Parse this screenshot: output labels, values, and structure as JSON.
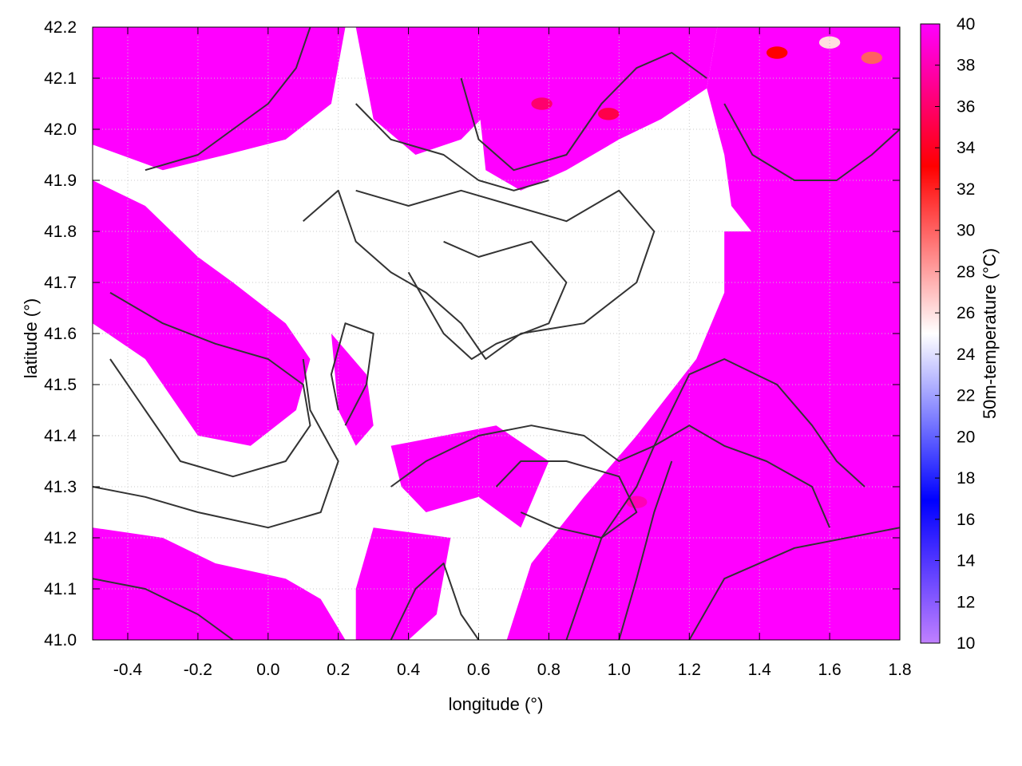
{
  "chart_data": {
    "type": "heatmap",
    "title": "",
    "xlabel": "longitude (°)",
    "ylabel": "latitude (°)",
    "colorbar_label": "50m-temperature (°C)",
    "xlim": [
      -0.5,
      1.8
    ],
    "ylim": [
      41.0,
      42.2
    ],
    "xticks": [
      -0.4,
      -0.2,
      0.0,
      0.2,
      0.4,
      0.6,
      0.8,
      1.0,
      1.2,
      1.4,
      1.6,
      1.8
    ],
    "xtick_labels": [
      "-0.4",
      "-0.2",
      "0.0",
      "0.2",
      "0.4",
      "0.6",
      "0.8",
      "1.0",
      "1.2",
      "1.4",
      "1.6",
      "1.8"
    ],
    "yticks": [
      41.0,
      41.1,
      41.2,
      41.3,
      41.4,
      41.5,
      41.6,
      41.7,
      41.8,
      41.9,
      42.0,
      42.1,
      42.2
    ],
    "ytick_labels": [
      "41.0",
      "41.1",
      "41.2",
      "41.3",
      "41.4",
      "41.5",
      "41.6",
      "41.7",
      "41.8",
      "41.9",
      "42.0",
      "42.1",
      "42.2"
    ],
    "colorbar": {
      "range": [
        10,
        40
      ],
      "ticks": [
        10,
        12,
        14,
        16,
        18,
        20,
        22,
        24,
        26,
        28,
        30,
        32,
        34,
        36,
        38,
        40
      ],
      "tick_labels": [
        "10",
        "12",
        "14",
        "16",
        "18",
        "20",
        "22",
        "24",
        "26",
        "28",
        "30",
        "32",
        "34",
        "36",
        "38",
        "40"
      ],
      "stops": [
        {
          "value": 10,
          "color": "#c080ff"
        },
        {
          "value": 17,
          "color": "#0000ff"
        },
        {
          "value": 25,
          "color": "#ffffff"
        },
        {
          "value": 33,
          "color": "#ff0000"
        },
        {
          "value": 40,
          "color": "#ff00ff"
        }
      ]
    },
    "grid": true,
    "field_description_values": {
      "dominant_value_C": 40,
      "contour_color": "#333333"
    },
    "saturated_regions_lonlat": [
      [
        [
          -0.5,
          42.2
        ],
        [
          0.22,
          42.2
        ],
        [
          0.18,
          42.05
        ],
        [
          0.05,
          41.98
        ],
        [
          -0.12,
          41.95
        ],
        [
          -0.3,
          41.92
        ],
        [
          -0.5,
          41.97
        ]
      ],
      [
        [
          -0.5,
          41.9
        ],
        [
          -0.35,
          41.85
        ],
        [
          -0.2,
          41.75
        ],
        [
          -0.1,
          41.7
        ],
        [
          0.05,
          41.62
        ],
        [
          0.12,
          41.55
        ],
        [
          0.08,
          41.45
        ],
        [
          -0.05,
          41.38
        ],
        [
          -0.2,
          41.4
        ],
        [
          -0.35,
          41.55
        ],
        [
          -0.5,
          41.62
        ]
      ],
      [
        [
          -0.5,
          41.22
        ],
        [
          -0.3,
          41.2
        ],
        [
          -0.15,
          41.15
        ],
        [
          0.05,
          41.12
        ],
        [
          0.15,
          41.08
        ],
        [
          0.22,
          41.0
        ],
        [
          -0.5,
          41.0
        ]
      ],
      [
        [
          0.25,
          42.2
        ],
        [
          0.62,
          42.2
        ],
        [
          0.65,
          42.05
        ],
        [
          0.55,
          41.98
        ],
        [
          0.42,
          41.95
        ],
        [
          0.3,
          42.02
        ]
      ],
      [
        [
          0.62,
          42.2
        ],
        [
          1.28,
          42.2
        ],
        [
          1.25,
          42.08
        ],
        [
          1.12,
          42.02
        ],
        [
          1.0,
          41.98
        ],
        [
          0.85,
          41.92
        ],
        [
          0.72,
          41.88
        ],
        [
          0.62,
          41.92
        ],
        [
          0.6,
          42.05
        ]
      ],
      [
        [
          1.28,
          42.2
        ],
        [
          1.8,
          42.2
        ],
        [
          1.8,
          41.7
        ],
        [
          1.55,
          41.72
        ],
        [
          1.4,
          41.78
        ],
        [
          1.32,
          41.85
        ],
        [
          1.3,
          41.95
        ],
        [
          1.25,
          42.08
        ]
      ],
      [
        [
          1.3,
          41.8
        ],
        [
          1.8,
          41.8
        ],
        [
          1.8,
          41.0
        ],
        [
          0.68,
          41.0
        ],
        [
          0.75,
          41.15
        ],
        [
          0.9,
          41.28
        ],
        [
          1.05,
          41.4
        ],
        [
          1.22,
          41.55
        ],
        [
          1.3,
          41.68
        ]
      ],
      [
        [
          0.35,
          41.38
        ],
        [
          0.65,
          41.42
        ],
        [
          0.8,
          41.35
        ],
        [
          0.72,
          41.22
        ],
        [
          0.6,
          41.28
        ],
        [
          0.45,
          41.25
        ],
        [
          0.38,
          41.3
        ]
      ],
      [
        [
          0.3,
          41.22
        ],
        [
          0.52,
          41.2
        ],
        [
          0.48,
          41.05
        ],
        [
          0.4,
          41.0
        ],
        [
          0.25,
          41.0
        ],
        [
          0.25,
          41.1
        ]
      ],
      [
        [
          0.18,
          41.6
        ],
        [
          0.28,
          41.52
        ],
        [
          0.3,
          41.42
        ],
        [
          0.25,
          41.38
        ],
        [
          0.2,
          41.45
        ]
      ]
    ],
    "contours_lonlat": [
      [
        [
          0.1,
          41.82
        ],
        [
          0.2,
          41.88
        ],
        [
          0.25,
          41.78
        ],
        [
          0.35,
          41.72
        ],
        [
          0.45,
          41.68
        ],
        [
          0.55,
          41.62
        ],
        [
          0.62,
          41.55
        ],
        [
          0.72,
          41.6
        ],
        [
          0.9,
          41.62
        ],
        [
          1.05,
          41.7
        ],
        [
          1.1,
          41.8
        ],
        [
          1.0,
          41.88
        ],
        [
          0.85,
          41.82
        ],
        [
          0.7,
          41.85
        ],
        [
          0.55,
          41.88
        ],
        [
          0.4,
          41.85
        ],
        [
          0.25,
          41.88
        ]
      ],
      [
        [
          0.4,
          41.72
        ],
        [
          0.5,
          41.6
        ],
        [
          0.58,
          41.55
        ],
        [
          0.65,
          41.58
        ],
        [
          0.8,
          41.62
        ],
        [
          0.85,
          41.7
        ],
        [
          0.75,
          41.78
        ],
        [
          0.6,
          41.75
        ],
        [
          0.5,
          41.78
        ]
      ],
      [
        [
          -0.45,
          41.68
        ],
        [
          -0.3,
          41.62
        ],
        [
          -0.15,
          41.58
        ],
        [
          0.0,
          41.55
        ],
        [
          0.1,
          41.5
        ],
        [
          0.12,
          41.42
        ],
        [
          0.05,
          41.35
        ],
        [
          -0.1,
          41.32
        ],
        [
          -0.25,
          41.35
        ],
        [
          -0.35,
          41.45
        ],
        [
          -0.45,
          41.55
        ]
      ],
      [
        [
          -0.5,
          41.3
        ],
        [
          -0.35,
          41.28
        ],
        [
          -0.2,
          41.25
        ],
        [
          0.0,
          41.22
        ],
        [
          0.15,
          41.25
        ],
        [
          0.2,
          41.35
        ],
        [
          0.12,
          41.45
        ],
        [
          0.1,
          41.55
        ]
      ],
      [
        [
          0.35,
          41.3
        ],
        [
          0.45,
          41.35
        ],
        [
          0.6,
          41.4
        ],
        [
          0.75,
          41.42
        ],
        [
          0.9,
          41.4
        ],
        [
          1.0,
          41.35
        ],
        [
          1.1,
          41.38
        ],
        [
          1.15,
          41.45
        ],
        [
          1.2,
          41.52
        ],
        [
          1.3,
          41.55
        ],
        [
          1.45,
          41.5
        ],
        [
          1.55,
          41.42
        ],
        [
          1.62,
          41.35
        ],
        [
          1.7,
          41.3
        ]
      ],
      [
        [
          0.65,
          41.3
        ],
        [
          0.72,
          41.35
        ],
        [
          0.85,
          41.35
        ],
        [
          1.0,
          41.32
        ],
        [
          1.05,
          41.25
        ],
        [
          0.95,
          41.2
        ],
        [
          0.82,
          41.22
        ],
        [
          0.72,
          41.25
        ]
      ],
      [
        [
          0.85,
          41.0
        ],
        [
          0.9,
          41.1
        ],
        [
          0.95,
          41.2
        ],
        [
          1.05,
          41.3
        ],
        [
          1.1,
          41.38
        ],
        [
          1.2,
          41.42
        ],
        [
          1.3,
          41.38
        ],
        [
          1.42,
          41.35
        ],
        [
          1.55,
          41.3
        ],
        [
          1.6,
          41.22
        ]
      ],
      [
        [
          1.0,
          41.0
        ],
        [
          1.05,
          41.12
        ],
        [
          1.1,
          41.25
        ],
        [
          1.15,
          41.35
        ]
      ],
      [
        [
          1.2,
          41.0
        ],
        [
          1.3,
          41.12
        ],
        [
          1.5,
          41.18
        ],
        [
          1.65,
          41.2
        ],
        [
          1.8,
          41.22
        ]
      ],
      [
        [
          0.55,
          42.1
        ],
        [
          0.6,
          41.98
        ],
        [
          0.7,
          41.92
        ],
        [
          0.85,
          41.95
        ],
        [
          0.95,
          42.05
        ],
        [
          1.05,
          42.12
        ],
        [
          1.15,
          42.15
        ],
        [
          1.25,
          42.1
        ]
      ],
      [
        [
          0.25,
          42.05
        ],
        [
          0.35,
          41.98
        ],
        [
          0.5,
          41.95
        ],
        [
          0.6,
          41.9
        ],
        [
          0.7,
          41.88
        ],
        [
          0.8,
          41.9
        ]
      ],
      [
        [
          1.3,
          42.05
        ],
        [
          1.38,
          41.95
        ],
        [
          1.5,
          41.9
        ],
        [
          1.62,
          41.9
        ],
        [
          1.72,
          41.95
        ],
        [
          1.8,
          42.0
        ]
      ],
      [
        [
          -0.35,
          41.92
        ],
        [
          -0.2,
          41.95
        ],
        [
          -0.1,
          42.0
        ],
        [
          0.0,
          42.05
        ],
        [
          0.08,
          42.12
        ],
        [
          0.12,
          42.2
        ]
      ],
      [
        [
          -0.5,
          41.12
        ],
        [
          -0.35,
          41.1
        ],
        [
          -0.2,
          41.05
        ],
        [
          -0.1,
          41.0
        ]
      ],
      [
        [
          0.35,
          41.0
        ],
        [
          0.42,
          41.1
        ],
        [
          0.5,
          41.15
        ],
        [
          0.55,
          41.05
        ],
        [
          0.6,
          41.0
        ]
      ],
      [
        [
          0.22,
          41.42
        ],
        [
          0.28,
          41.5
        ],
        [
          0.3,
          41.6
        ],
        [
          0.22,
          41.62
        ],
        [
          0.18,
          41.52
        ],
        [
          0.2,
          41.45
        ]
      ]
    ],
    "hot_spots_lonlat": [
      {
        "center": [
          0.78,
          42.05
        ],
        "value": 36
      },
      {
        "center": [
          0.97,
          42.03
        ],
        "value": 35
      },
      {
        "center": [
          1.6,
          42.17
        ],
        "value": 26
      },
      {
        "center": [
          1.45,
          42.15
        ],
        "value": 33
      },
      {
        "center": [
          1.72,
          42.14
        ],
        "value": 30
      },
      {
        "center": [
          1.05,
          41.27
        ],
        "value": 38
      }
    ]
  }
}
